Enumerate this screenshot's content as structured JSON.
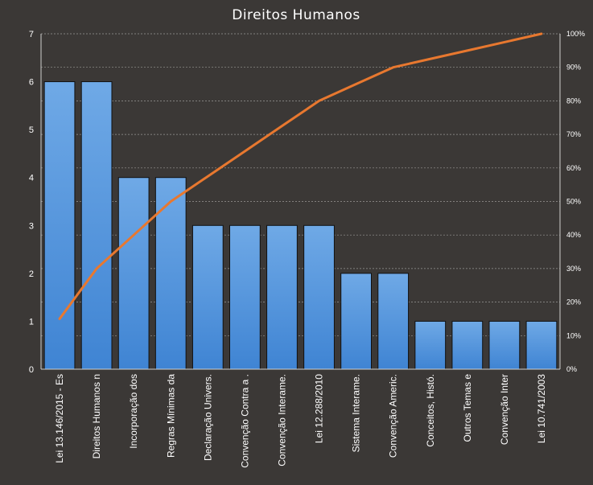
{
  "chart_data": {
    "type": "bar",
    "title": "Direitos Humanos",
    "categories": [
      "Lei 13.146/2015  - Es",
      "Direitos Humanos n",
      "Incorporação dos",
      "Regras Mínimas da",
      "Declaração Univers.",
      "Convenção Contra a .",
      "Convenção Interame.",
      "Lei 12.288/2010",
      "Sistema Interame.",
      "Convenção Americ.",
      "Conceitos, Histó.",
      "Outros Temas e",
      "Convenção Inter",
      "Lei 10.741/2003"
    ],
    "series": [
      {
        "type": "bar",
        "values": [
          6,
          6,
          4,
          4,
          3,
          3,
          3,
          3,
          2,
          2,
          1,
          1,
          1,
          1
        ],
        "color": "#4a8fd8"
      },
      {
        "type": "line",
        "axis": "right",
        "values": [
          15,
          30,
          40,
          50,
          57.5,
          65,
          72.5,
          80,
          85,
          90,
          92.5,
          95,
          97.5,
          100
        ],
        "color": "#e8782f"
      }
    ],
    "ylim": [
      0,
      7
    ],
    "yticks": [
      "0",
      "1",
      "2",
      "3",
      "4",
      "5",
      "6",
      "7"
    ],
    "y2lim": [
      0,
      100
    ],
    "y2ticks": [
      "0%",
      "10%",
      "20%",
      "30%",
      "40%",
      "50%",
      "60%",
      "70%",
      "80%",
      "90%",
      "100%"
    ],
    "grid": true,
    "legend": "none",
    "background": "#3b3836"
  }
}
